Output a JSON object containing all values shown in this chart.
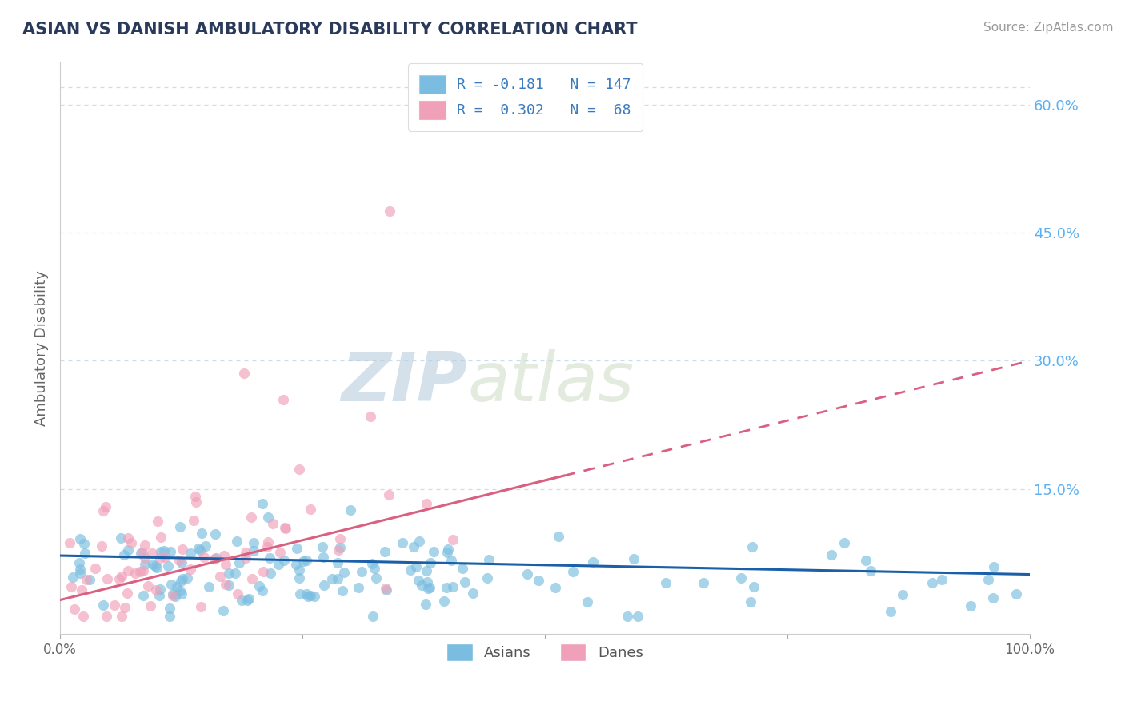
{
  "title": "ASIAN VS DANISH AMBULATORY DISABILITY CORRELATION CHART",
  "source": "Source: ZipAtlas.com",
  "ylabel": "Ambulatory Disability",
  "xlim": [
    0.0,
    1.0
  ],
  "ylim": [
    -0.02,
    0.65
  ],
  "right_yticks": [
    0.0,
    0.15,
    0.3,
    0.45,
    0.6
  ],
  "right_yticklabels": [
    "",
    "15.0%",
    "30.0%",
    "45.0%",
    "60.0%"
  ],
  "color_asian": "#7abde0",
  "color_dane": "#f0a0b8",
  "color_line_asian": "#1a5fa8",
  "color_line_dane": "#d96080",
  "color_title": "#2a3a5a",
  "color_source": "#999999",
  "color_right_axis": "#5ab0f0",
  "color_grid": "#c8ddf0",
  "watermark_zip": "ZIP",
  "watermark_atlas": "atlas",
  "seed": 7
}
